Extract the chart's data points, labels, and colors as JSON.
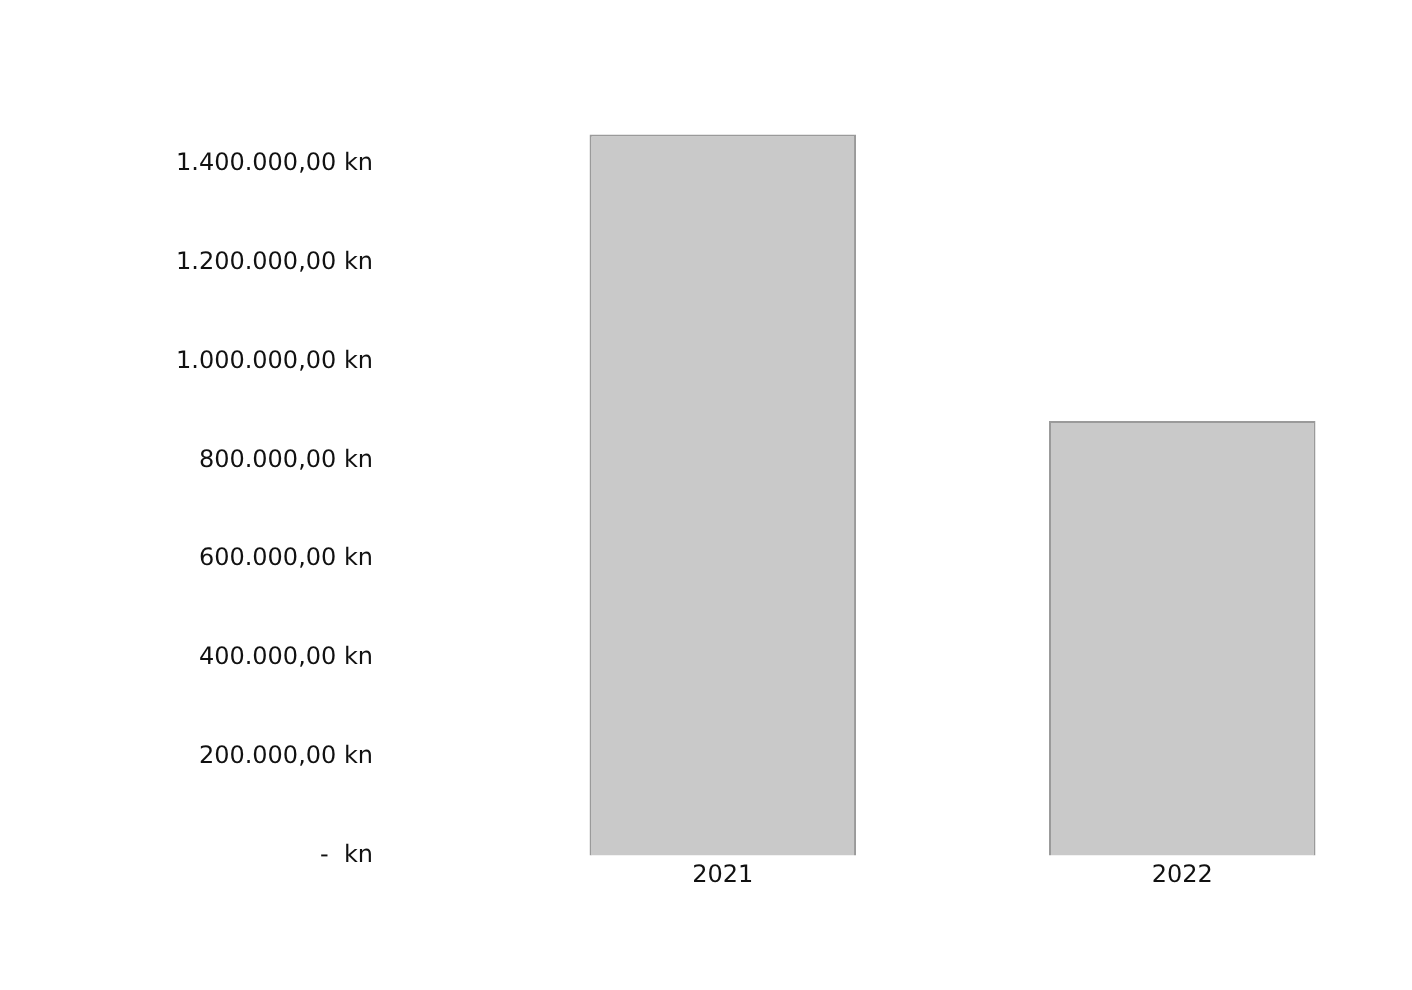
{
  "chart_data": {
    "type": "bar",
    "categories": [
      "2021",
      "2022"
    ],
    "values": [
      1460000,
      880000
    ],
    "color": "#c9c9c9",
    "ylim": [
      0,
      1460000
    ],
    "yticks": [
      {
        "value": 0,
        "label": "-  kn"
      },
      {
        "value": 200000,
        "label": "200.000,00 kn"
      },
      {
        "value": 400000,
        "label": "400.000,00 kn"
      },
      {
        "value": 600000,
        "label": "600.000,00 kn"
      },
      {
        "value": 800000,
        "label": "800.000,00 kn"
      },
      {
        "value": 1000000,
        "label": "1.000.000,00 kn"
      },
      {
        "value": 1200000,
        "label": "1.200.000,00 kn"
      },
      {
        "value": 1400000,
        "label": "1.400.000,00 kn"
      }
    ],
    "grid": false,
    "legend": false
  }
}
